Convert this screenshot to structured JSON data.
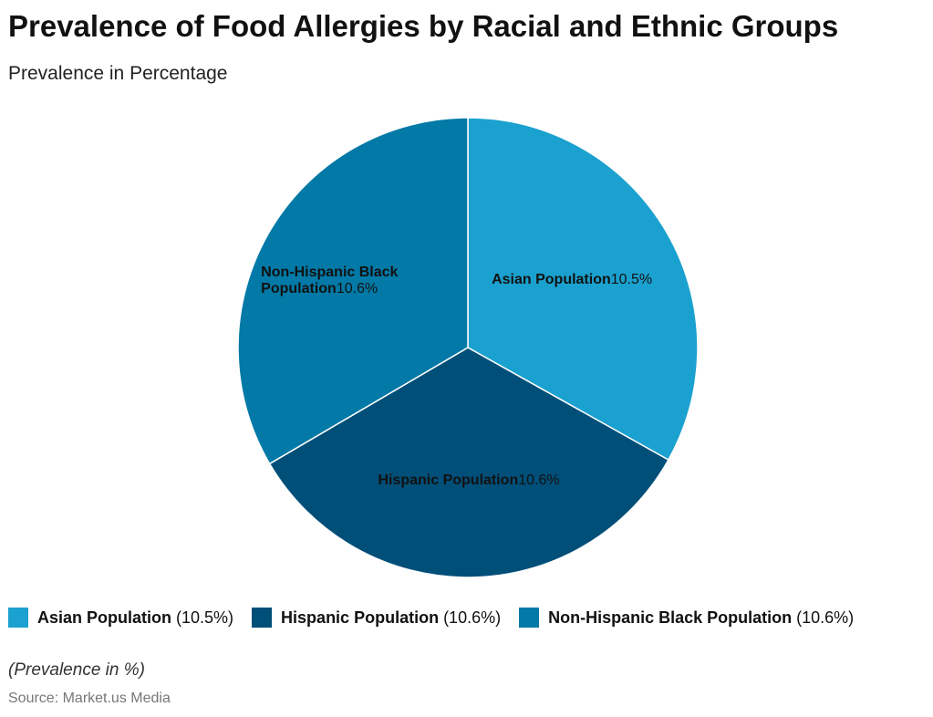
{
  "chart_data": {
    "type": "pie",
    "title": "Prevalence of Food Allergies by Racial and Ethnic Groups",
    "subtitle": "Prevalence in Percentage",
    "categories": [
      "Asian Population",
      "Hispanic Population",
      "Non-Hispanic Black Population"
    ],
    "values": [
      10.5,
      10.6,
      10.6
    ],
    "value_labels": [
      "10.5%",
      "10.6%",
      "10.6%"
    ],
    "legend_value_labels": [
      "(10.5%)",
      "(10.6%)",
      "(10.6%)"
    ],
    "colors": [
      "#1ba1cf",
      "#004f79",
      "#0279a6"
    ],
    "note": "(Prevalence in %)",
    "source": "Source: Market.us Media"
  }
}
